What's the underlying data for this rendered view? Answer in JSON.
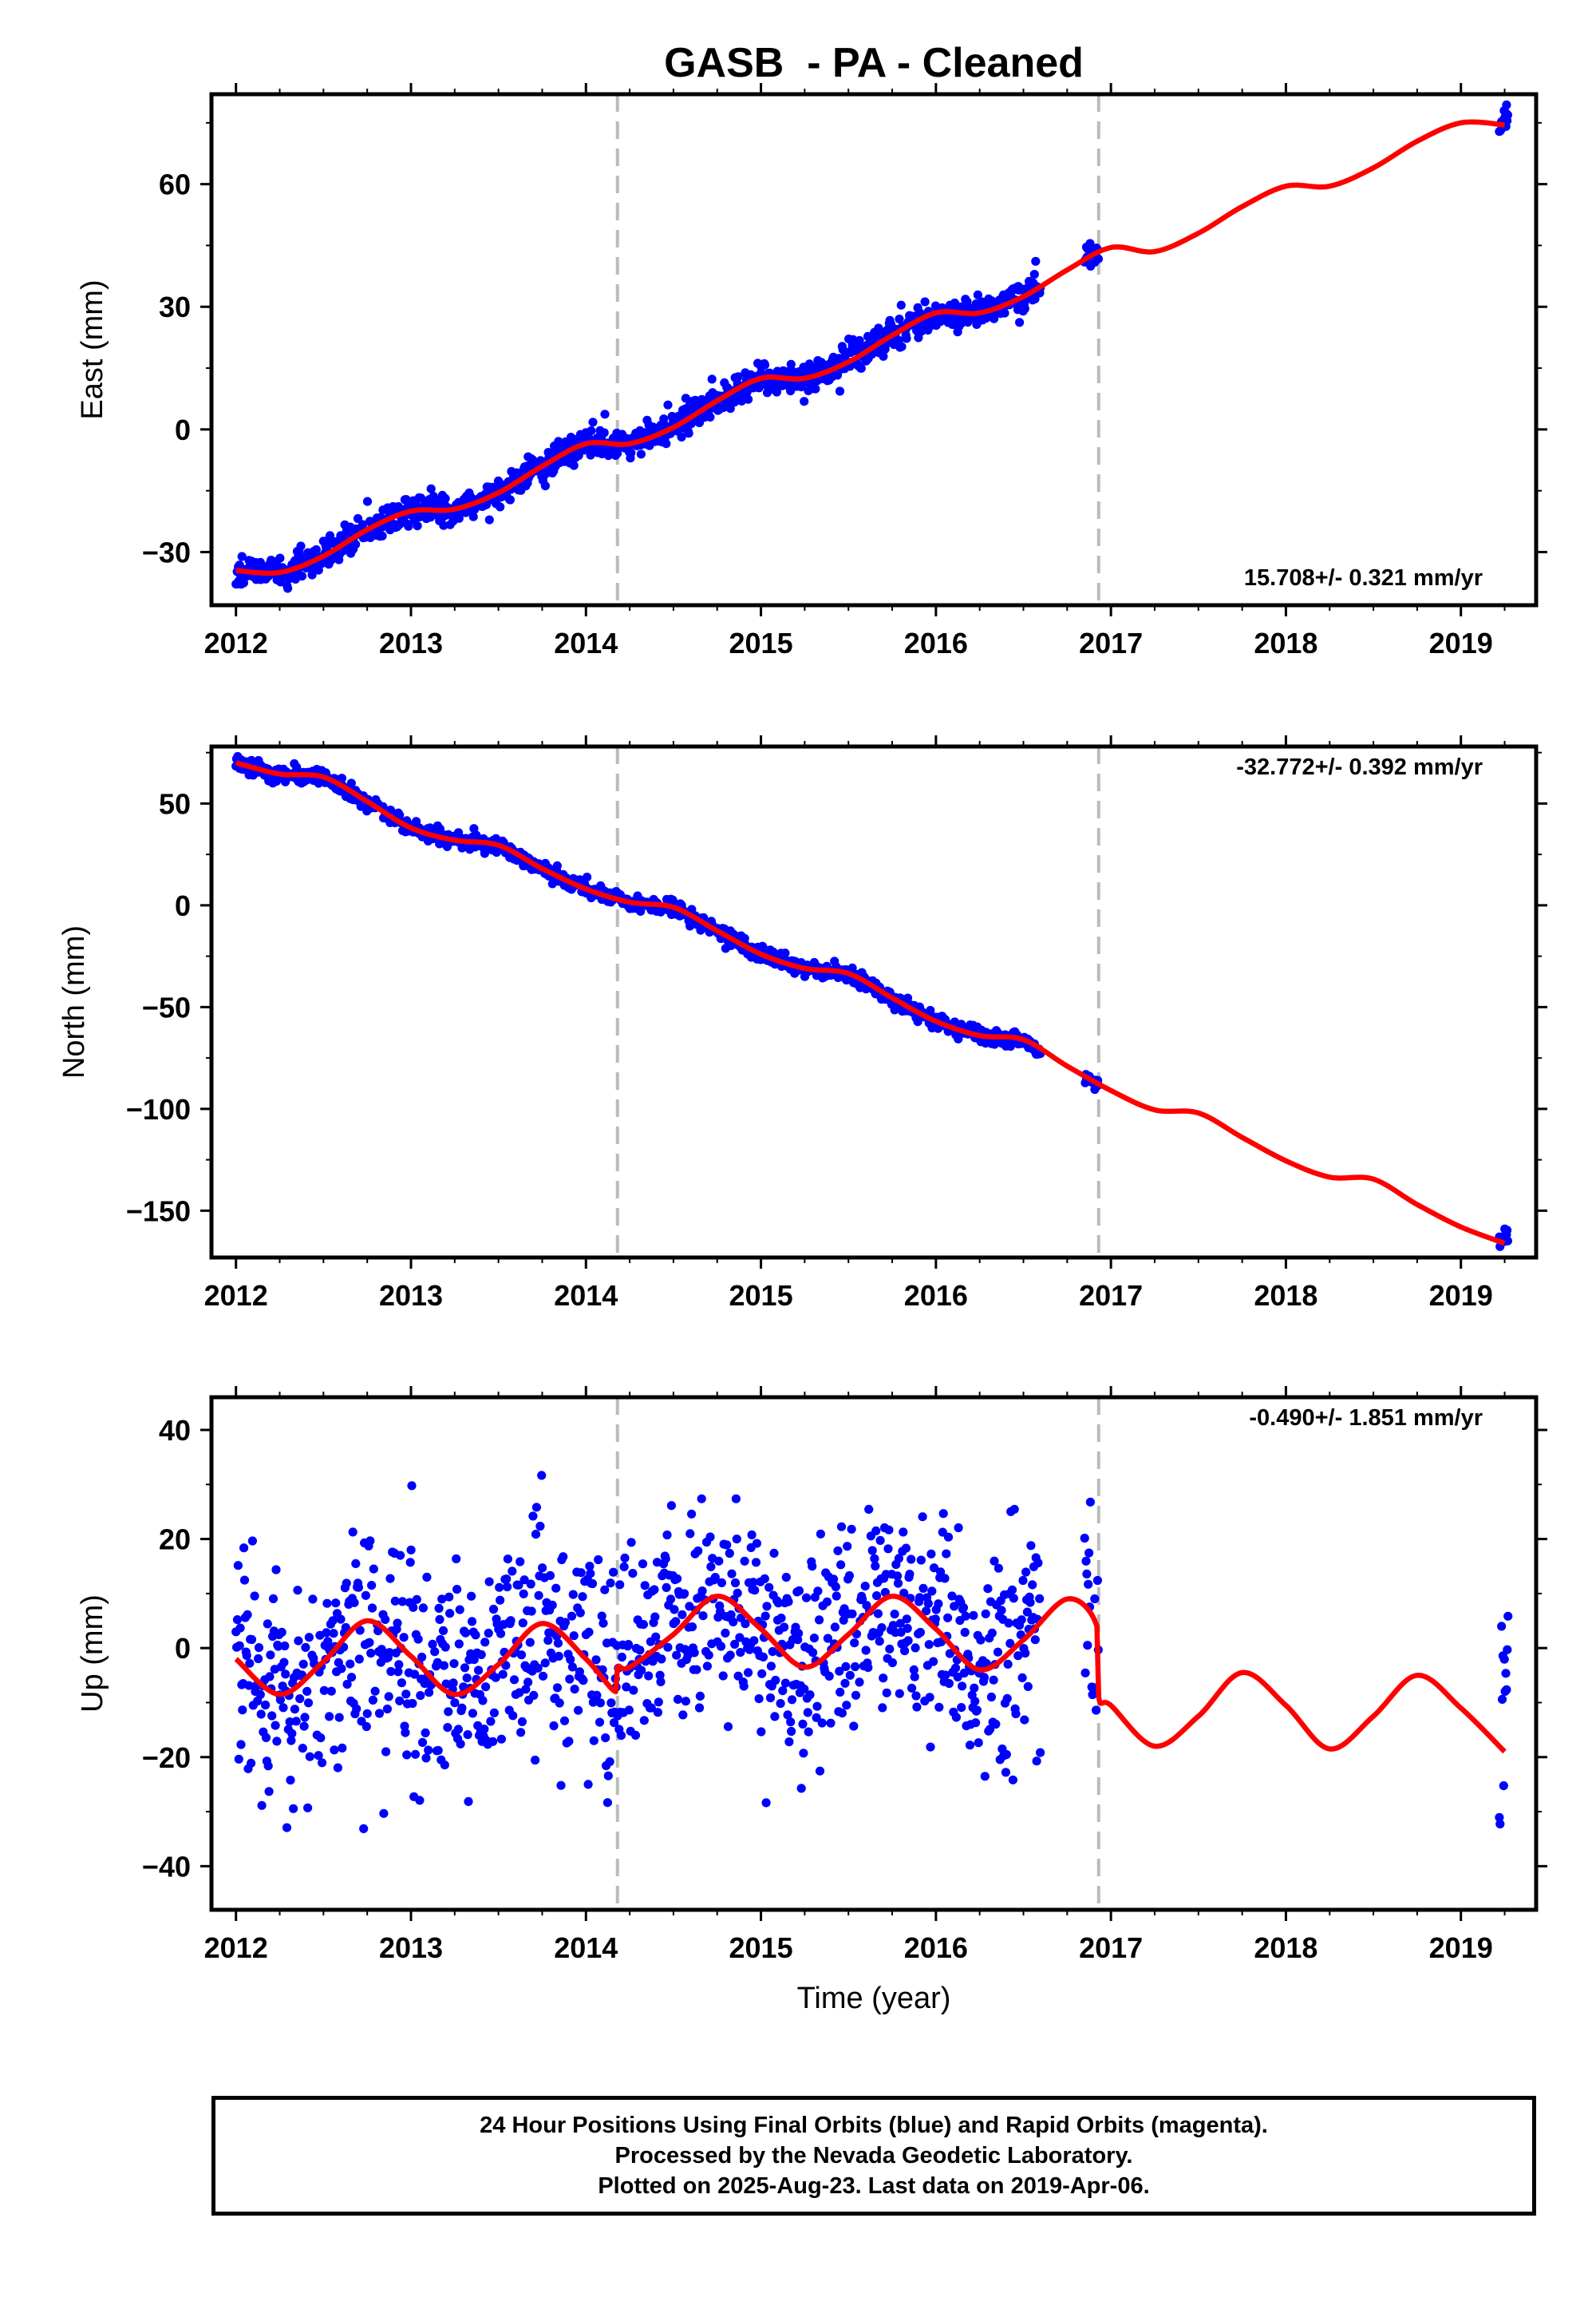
{
  "page_title": "GASB  - PA - Cleaned",
  "colors": {
    "final_orbits_points": "#0000ff",
    "model_fit": "#ff0000",
    "event_lines": "#bbbbbb",
    "frame": "#000000"
  },
  "x_tick_labels": [
    "2012",
    "2013",
    "2014",
    "2015",
    "2016",
    "2017",
    "2018",
    "2019"
  ],
  "x_axis_label": "Time (year)",
  "footer": {
    "line1": "24 Hour Positions Using Final Orbits (blue) and Rapid Orbits (magenta).",
    "line2": "Processed by the Nevada Geodetic Laboratory.",
    "line3": "Plotted on 2025-Aug-23. Last data on 2019-Apr-06."
  },
  "chart_data": [
    {
      "type": "scatter",
      "component": "east",
      "ylabel": "East (mm)",
      "rate_label": "15.708+/- 0.321 mm/yr",
      "xlim": [
        2011.86,
        2019.43
      ],
      "ylim": [
        -43,
        82
      ],
      "yticks": [
        -30,
        0,
        30,
        60
      ],
      "ytick_labels": [
        "−30",
        "0",
        "30",
        "60"
      ],
      "grid": false,
      "event_lines_x": [
        2014.18,
        2016.93
      ],
      "series": [
        {
          "kind": "points",
          "data_ranges": [
            [
              2012.0,
              2016.6
            ],
            [
              2016.85,
              2016.93
            ],
            [
              2019.22,
              2019.27
            ]
          ],
          "trend": {
            "t0": 2014.3,
            "offset": -1.0,
            "rate": 15.708
          },
          "seasonal": {
            "annual_cos": 0.0,
            "annual_sin": 0.0,
            "semiannual_cos": -0.8,
            "semiannual_sin": 2.4
          },
          "scatter_sd": 1.8
        },
        {
          "kind": "model",
          "x": [
            2012.0,
            2012.25,
            2012.5,
            2012.75,
            2013.0,
            2013.25,
            2013.5,
            2013.75,
            2014.0,
            2014.25,
            2014.5,
            2014.75,
            2015.0,
            2015.25,
            2015.5,
            2015.75,
            2016.0,
            2016.25,
            2016.5,
            2016.75,
            2017.0,
            2017.25,
            2017.5,
            2017.75,
            2018.0,
            2018.25,
            2018.5,
            2018.75,
            2019.0,
            2019.25
          ],
          "y": [
            -34.5,
            -35.0,
            -31.0,
            -24.5,
            -20.0,
            -19.5,
            -15.5,
            -9.0,
            -3.5,
            -3.5,
            0.5,
            7.0,
            12.5,
            12.5,
            16.5,
            23.0,
            28.5,
            28.5,
            32.5,
            39.0,
            44.5,
            43.5,
            48.0,
            54.5,
            59.5,
            59.5,
            64.0,
            70.5,
            75.0,
            74.5
          ]
        }
      ]
    },
    {
      "type": "scatter",
      "component": "north",
      "ylabel": "North (mm)",
      "rate_label": "-32.772+/- 0.392 mm/yr",
      "xlim": [
        2011.86,
        2019.43
      ],
      "ylim": [
        -173,
        78
      ],
      "yticks": [
        -150,
        -100,
        -50,
        0,
        50
      ],
      "ytick_labels": [
        "−150",
        "−100",
        "−50",
        "0",
        "50"
      ],
      "grid": false,
      "event_lines_x": [
        2014.18,
        2016.93
      ],
      "series": [
        {
          "kind": "points",
          "data_ranges": [
            [
              2012.0,
              2016.6
            ],
            [
              2016.85,
              2016.93
            ],
            [
              2019.22,
              2019.27
            ]
          ],
          "trend": {
            "t0": 2014.3,
            "offset": 2.0,
            "rate": -32.772
          },
          "seasonal": {
            "annual_cos": 0.0,
            "annual_sin": 0.0,
            "semiannual_cos": 1.2,
            "semiannual_sin": -3.6
          },
          "scatter_sd": 1.9
        },
        {
          "kind": "model",
          "x": [
            2012.0,
            2012.25,
            2012.5,
            2012.75,
            2013.0,
            2013.25,
            2013.5,
            2013.75,
            2014.0,
            2014.25,
            2014.5,
            2014.75,
            2015.0,
            2015.25,
            2015.5,
            2015.75,
            2016.0,
            2016.25,
            2016.5,
            2016.75,
            2017.0,
            2017.25,
            2017.5,
            2017.75,
            2018.0,
            2018.25,
            2018.5,
            2018.75,
            2019.0,
            2019.25
          ],
          "y": [
            70.0,
            64.5,
            63.0,
            51.0,
            38.0,
            32.0,
            29.5,
            18.0,
            8.0,
            1.5,
            -1.0,
            -12.5,
            -24.0,
            -31.0,
            -33.5,
            -45.5,
            -57.0,
            -64.0,
            -66.0,
            -79.0,
            -91.0,
            -100.5,
            -102.0,
            -114.0,
            -125.5,
            -133.5,
            -134.5,
            -147.0,
            -158.0,
            -166.0
          ]
        }
      ]
    },
    {
      "type": "scatter",
      "component": "up",
      "ylabel": "Up (mm)",
      "rate_label": "-0.490+/- 1.851 mm/yr",
      "xlim": [
        2011.86,
        2019.43
      ],
      "ylim": [
        -48,
        46
      ],
      "yticks": [
        -40,
        -20,
        0,
        20,
        40
      ],
      "ytick_labels": [
        "−40",
        "−20",
        "0",
        "20",
        "40"
      ],
      "grid": false,
      "event_lines_x": [
        2014.18,
        2016.93
      ],
      "series": [
        {
          "kind": "points",
          "data_ranges": [
            [
              2012.0,
              2016.6
            ],
            [
              2016.85,
              2016.93
            ],
            [
              2019.22,
              2019.27
            ]
          ],
          "trend": {
            "t0": 2014.3,
            "offset": 0.0,
            "rate": -0.49
          },
          "seasonal": {
            "annual_cos": 0.0,
            "annual_sin": 0.0,
            "semiannual_cos": 0.0,
            "semiannual_sin": 0.0
          },
          "scatter_sd": 10.5
        },
        {
          "kind": "model",
          "x": [
            2012.0,
            2012.25,
            2012.5,
            2012.75,
            2013.0,
            2013.25,
            2013.5,
            2013.75,
            2014.0,
            2014.17,
            2014.18,
            2014.25,
            2014.5,
            2014.75,
            2015.0,
            2015.25,
            2015.5,
            2015.75,
            2016.0,
            2016.25,
            2016.5,
            2016.75,
            2016.92,
            2016.93,
            2017.0,
            2017.25,
            2017.5,
            2017.75,
            2018.0,
            2018.25,
            2018.5,
            2018.75,
            2019.0,
            2019.25
          ],
          "y": [
            -2.0,
            -8.5,
            -2.5,
            5.0,
            -1.5,
            -8.5,
            -3.0,
            4.5,
            -2.0,
            -8.0,
            -3.5,
            -3.5,
            2.5,
            9.5,
            3.5,
            -3.5,
            2.5,
            9.5,
            3.5,
            -4.0,
            1.5,
            9.0,
            4.0,
            -9.0,
            -10.5,
            -18.0,
            -12.5,
            -4.5,
            -10.5,
            -18.5,
            -12.5,
            -5.0,
            -11.0,
            -19.0
          ]
        }
      ]
    }
  ]
}
